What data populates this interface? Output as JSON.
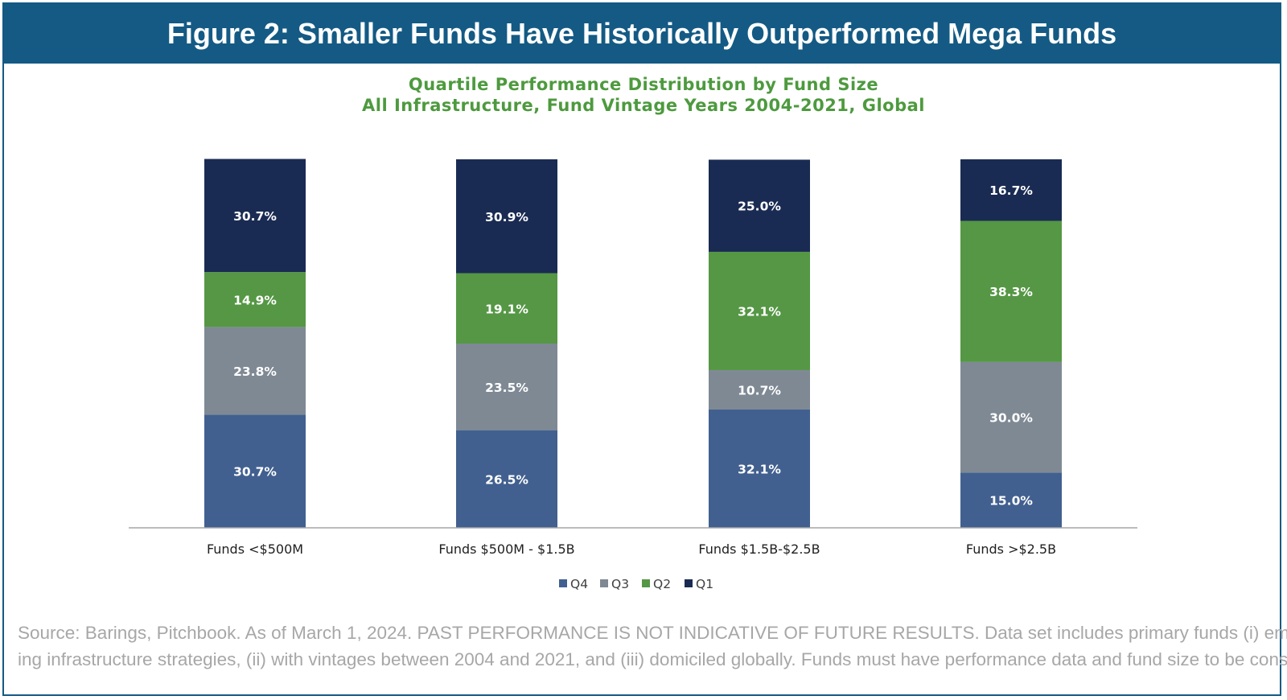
{
  "header": {
    "title": "Figure 2: Smaller Funds Have Historically Outperformed Mega Funds"
  },
  "chart_data": {
    "type": "bar",
    "stacked": true,
    "title": "Quartile Performance Distribution by Fund Size",
    "subtitle": "All Infrastructure, Fund Vintage Years 2004-2021, Global",
    "categories": [
      "Funds <$500M",
      "Funds $500M - $1.5B",
      "Funds $1.5B-$2.5B",
      "Funds >$2.5B"
    ],
    "series": [
      {
        "name": "Q4",
        "color": "#41608f",
        "values": [
          30.7,
          26.5,
          32.1,
          15.0
        ],
        "labels": [
          "30.7%",
          "26.5%",
          "32.1%",
          "15.0%"
        ]
      },
      {
        "name": "Q3",
        "color": "#7f8994",
        "values": [
          23.8,
          23.5,
          10.7,
          30.0
        ],
        "labels": [
          "23.8%",
          "23.5%",
          "10.7%",
          "30.0%"
        ]
      },
      {
        "name": "Q2",
        "color": "#559745",
        "values": [
          14.9,
          19.1,
          32.1,
          38.3
        ],
        "labels": [
          "14.9%",
          "19.1%",
          "32.1%",
          "38.3%"
        ]
      },
      {
        "name": "Q1",
        "color": "#1a2b53",
        "values": [
          30.7,
          30.9,
          25.0,
          16.7
        ],
        "labels": [
          "30.7%",
          "30.9%",
          "25.0%",
          "16.7%"
        ]
      }
    ],
    "ylim": [
      0,
      100
    ],
    "xlabel": "",
    "ylabel": "",
    "legend": "bottom-center",
    "grid": false
  },
  "footer": {
    "source_line1": "Source: Barings, Pitchbook. As of March 1, 2024. PAST PERFORMANCE IS NOT INDICATIVE OF FUTURE RESULTS. Data set includes primary funds (i) employ-",
    "source_line2": "ing infrastructure strategies, (ii) with vintages between 2004 and 2021, and (iii) domiciled globally. Funds must have performance data and fund size to be considered."
  }
}
